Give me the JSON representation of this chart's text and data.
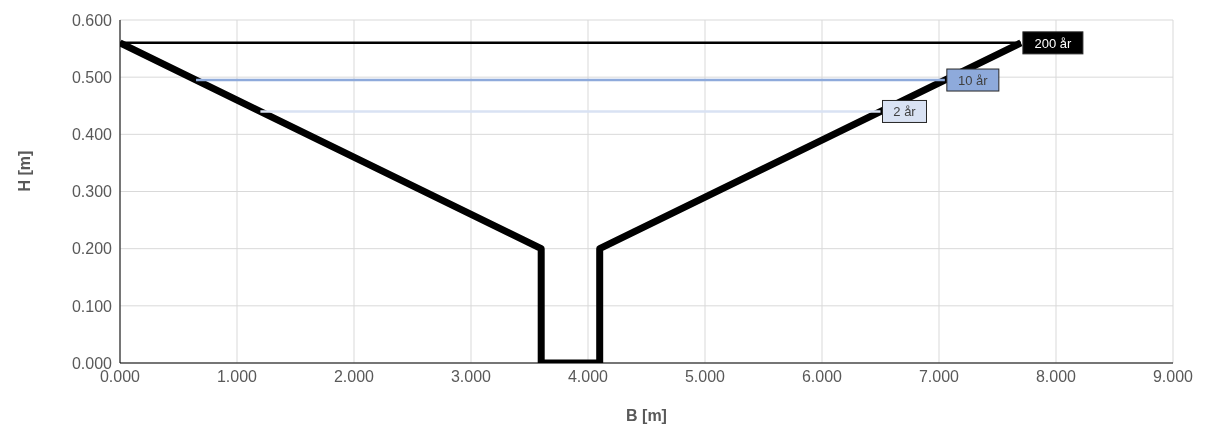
{
  "chart_data": {
    "type": "line",
    "xlabel": "B [m]",
    "ylabel": "H [m]",
    "xlim": [
      0,
      9
    ],
    "ylim": [
      0,
      0.6
    ],
    "xticks": [
      {
        "value": 0,
        "label": "0.000"
      },
      {
        "value": 1,
        "label": "1.000"
      },
      {
        "value": 2,
        "label": "2.000"
      },
      {
        "value": 3,
        "label": "3.000"
      },
      {
        "value": 4,
        "label": "4.000"
      },
      {
        "value": 5,
        "label": "5.000"
      },
      {
        "value": 6,
        "label": "6.000"
      },
      {
        "value": 7,
        "label": "7.000"
      },
      {
        "value": 8,
        "label": "8.000"
      },
      {
        "value": 9,
        "label": "9.000"
      }
    ],
    "yticks": [
      {
        "value": 0,
        "label": "0.000"
      },
      {
        "value": 0.1,
        "label": "0.100"
      },
      {
        "value": 0.2,
        "label": "0.200"
      },
      {
        "value": 0.3,
        "label": "0.300"
      },
      {
        "value": 0.4,
        "label": "0.400"
      },
      {
        "value": 0.5,
        "label": "0.500"
      },
      {
        "value": 0.6,
        "label": "0.600"
      }
    ],
    "grid": true,
    "legend": false,
    "marker": "none",
    "line_style": "solid",
    "series": [
      {
        "color": "#000000",
        "x": [
          0,
          3.6,
          3.6,
          4.1,
          4.1,
          7.7
        ],
        "values": [
          0.56,
          0.2,
          0,
          0,
          0.2,
          0.56
        ]
      },
      {
        "name": "200 år",
        "color": "#000000",
        "x": [
          0,
          7.7
        ],
        "values": [
          0.56,
          0.56
        ]
      },
      {
        "name": "10 år",
        "color": "#8eaadb",
        "x": [
          0.65,
          7.05
        ],
        "values": [
          0.495,
          0.495
        ]
      },
      {
        "name": "2 år",
        "color": "#d9e2f3",
        "x": [
          1.2,
          6.5
        ],
        "values": [
          0.44,
          0.44
        ]
      }
    ]
  }
}
